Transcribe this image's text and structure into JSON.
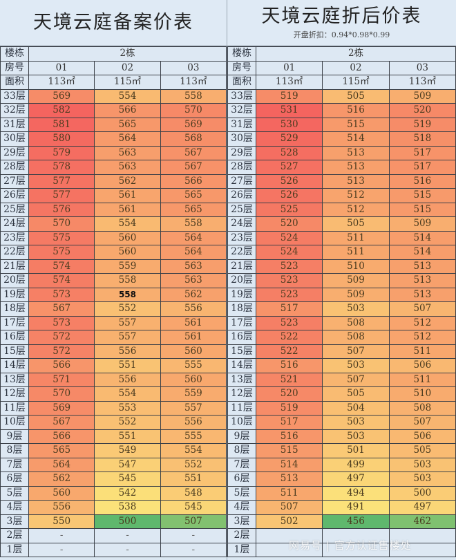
{
  "left": {
    "title": "天境云庭备案价表",
    "subtitle": "",
    "header": {
      "building_label": "楼栋",
      "building_value": "2栋",
      "room_label": "房号",
      "rooms": [
        "01",
        "02",
        "03"
      ],
      "area_label": "面积",
      "areas": [
        "113㎡",
        "115㎡",
        "113㎡"
      ]
    },
    "rows": [
      {
        "floor": "33层",
        "values": [
          "569",
          "554",
          "558"
        ]
      },
      {
        "floor": "32层",
        "values": [
          "582",
          "566",
          "570"
        ]
      },
      {
        "floor": "31层",
        "values": [
          "581",
          "565",
          "569"
        ]
      },
      {
        "floor": "30层",
        "values": [
          "580",
          "564",
          "568"
        ]
      },
      {
        "floor": "29层",
        "values": [
          "579",
          "563",
          "567"
        ]
      },
      {
        "floor": "28层",
        "values": [
          "578",
          "563",
          "567"
        ]
      },
      {
        "floor": "27层",
        "values": [
          "577",
          "562",
          "566"
        ]
      },
      {
        "floor": "26层",
        "values": [
          "577",
          "561",
          "565"
        ]
      },
      {
        "floor": "25层",
        "values": [
          "576",
          "561",
          "565"
        ]
      },
      {
        "floor": "24层",
        "values": [
          "570",
          "554",
          "558"
        ]
      },
      {
        "floor": "23层",
        "values": [
          "575",
          "560",
          "564"
        ]
      },
      {
        "floor": "22层",
        "values": [
          "575",
          "560",
          "564"
        ]
      },
      {
        "floor": "21层",
        "values": [
          "574",
          "559",
          "563"
        ]
      },
      {
        "floor": "20层",
        "values": [
          "574",
          "558",
          "563"
        ]
      },
      {
        "floor": "19层",
        "values": [
          "573",
          "558",
          "562"
        ],
        "bold_index": 1
      },
      {
        "floor": "18层",
        "values": [
          "567",
          "552",
          "556"
        ]
      },
      {
        "floor": "17层",
        "values": [
          "573",
          "557",
          "561"
        ]
      },
      {
        "floor": "16层",
        "values": [
          "572",
          "557",
          "561"
        ]
      },
      {
        "floor": "15层",
        "values": [
          "572",
          "556",
          "560"
        ]
      },
      {
        "floor": "14层",
        "values": [
          "566",
          "551",
          "555"
        ]
      },
      {
        "floor": "13层",
        "values": [
          "571",
          "556",
          "560"
        ]
      },
      {
        "floor": "12层",
        "values": [
          "570",
          "554",
          "559"
        ]
      },
      {
        "floor": "11层",
        "values": [
          "569",
          "553",
          "557"
        ]
      },
      {
        "floor": "10层",
        "values": [
          "567",
          "552",
          "556"
        ]
      },
      {
        "floor": "9层",
        "values": [
          "566",
          "551",
          "555"
        ]
      },
      {
        "floor": "8层",
        "values": [
          "565",
          "549",
          "554"
        ]
      },
      {
        "floor": "7层",
        "values": [
          "564",
          "547",
          "552"
        ]
      },
      {
        "floor": "6层",
        "values": [
          "562",
          "545",
          "551"
        ]
      },
      {
        "floor": "5层",
        "values": [
          "560",
          "542",
          "548"
        ]
      },
      {
        "floor": "4层",
        "values": [
          "556",
          "538",
          "545"
        ]
      },
      {
        "floor": "3层",
        "values": [
          "550",
          "500",
          "507"
        ]
      },
      {
        "floor": "2层",
        "values": [
          "-",
          "-",
          "-"
        ]
      },
      {
        "floor": "1层",
        "values": [
          "-",
          "-",
          "-"
        ]
      }
    ]
  },
  "right": {
    "title": "天境云庭折后价表",
    "subtitle": "开盘折扣：0.94*0.98*0.99",
    "header": {
      "building_label": "楼栋",
      "building_value": "2栋",
      "room_label": "房号",
      "rooms": [
        "01",
        "02",
        "03"
      ],
      "area_label": "面积",
      "areas": [
        "113㎡",
        "115㎡",
        "113㎡"
      ]
    },
    "rows": [
      {
        "floor": "33层",
        "values": [
          "519",
          "505",
          "509"
        ]
      },
      {
        "floor": "32层",
        "values": [
          "531",
          "516",
          "520"
        ]
      },
      {
        "floor": "31层",
        "values": [
          "530",
          "515",
          "519"
        ]
      },
      {
        "floor": "30层",
        "values": [
          "529",
          "514",
          "518"
        ]
      },
      {
        "floor": "29层",
        "values": [
          "528",
          "513",
          "517"
        ]
      },
      {
        "floor": "28层",
        "values": [
          "527",
          "513",
          "517"
        ]
      },
      {
        "floor": "27层",
        "values": [
          "526",
          "513",
          "516"
        ]
      },
      {
        "floor": "26层",
        "values": [
          "526",
          "512",
          "515"
        ]
      },
      {
        "floor": "25层",
        "values": [
          "525",
          "512",
          "515"
        ]
      },
      {
        "floor": "24层",
        "values": [
          "520",
          "505",
          "509"
        ]
      },
      {
        "floor": "23层",
        "values": [
          "524",
          "511",
          "514"
        ]
      },
      {
        "floor": "22层",
        "values": [
          "524",
          "511",
          "514"
        ]
      },
      {
        "floor": "21层",
        "values": [
          "523",
          "510",
          "513"
        ]
      },
      {
        "floor": "20层",
        "values": [
          "523",
          "509",
          "513"
        ]
      },
      {
        "floor": "19层",
        "values": [
          "523",
          "509",
          "513"
        ]
      },
      {
        "floor": "18层",
        "values": [
          "517",
          "503",
          "507"
        ]
      },
      {
        "floor": "17层",
        "values": [
          "523",
          "508",
          "512"
        ]
      },
      {
        "floor": "16层",
        "values": [
          "522",
          "508",
          "512"
        ]
      },
      {
        "floor": "15层",
        "values": [
          "522",
          "507",
          "511"
        ]
      },
      {
        "floor": "14层",
        "values": [
          "516",
          "503",
          "506"
        ]
      },
      {
        "floor": "13层",
        "values": [
          "521",
          "507",
          "511"
        ]
      },
      {
        "floor": "12层",
        "values": [
          "520",
          "505",
          "510"
        ]
      },
      {
        "floor": "11层",
        "values": [
          "519",
          "504",
          "508"
        ]
      },
      {
        "floor": "10层",
        "values": [
          "517",
          "503",
          "507"
        ]
      },
      {
        "floor": "9层",
        "values": [
          "516",
          "503",
          "506"
        ]
      },
      {
        "floor": "8层",
        "values": [
          "515",
          "501",
          "505"
        ]
      },
      {
        "floor": "7层",
        "values": [
          "514",
          "499",
          "503"
        ]
      },
      {
        "floor": "6层",
        "values": [
          "513",
          "497",
          "503"
        ]
      },
      {
        "floor": "5层",
        "values": [
          "511",
          "494",
          "500"
        ]
      },
      {
        "floor": "4层",
        "values": [
          "507",
          "491",
          "497"
        ]
      },
      {
        "floor": "3层",
        "values": [
          "502",
          "456",
          "462"
        ]
      },
      {
        "floor": "2层",
        "values": [
          "",
          "",
          ""
        ]
      },
      {
        "floor": "1层",
        "values": [
          "",
          "",
          ""
        ]
      }
    ]
  },
  "watermark": "网易号 | 官方认证售楼处",
  "colors": {
    "high": "#f4645f",
    "mid": "#fbe27a",
    "low": "#5fb86d",
    "header_bg": "#dde8f3"
  }
}
